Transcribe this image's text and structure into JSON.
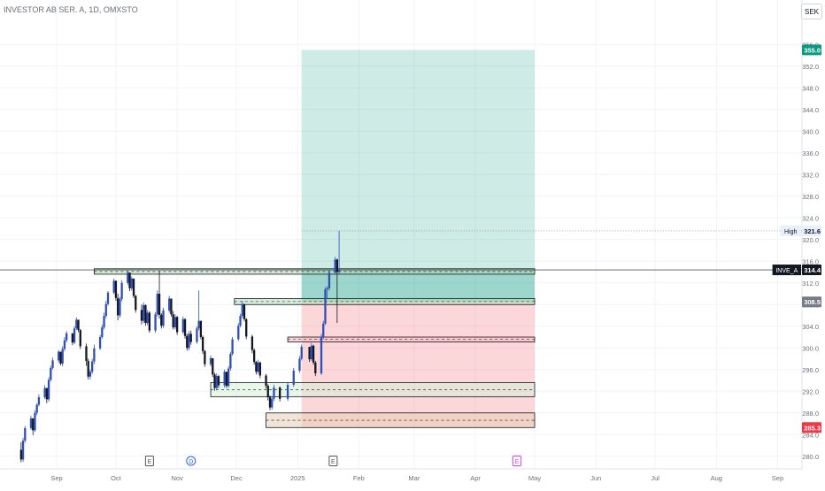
{
  "header": {
    "title": "INVESTOR AB SER. A, 1D, OMXSTO",
    "currency": "SEK"
  },
  "chart_data": {
    "type": "candlestick",
    "ylim": [
      278.0,
      358.0
    ],
    "y_ticks": [
      "280.0",
      "284.0",
      "288.0",
      "292.0",
      "296.0",
      "300.0",
      "304.0",
      "308.0",
      "312.0",
      "316.0",
      "320.0",
      "324.0",
      "328.0",
      "332.0",
      "336.0",
      "340.0",
      "344.0",
      "348.0",
      "352.0",
      "356.0"
    ],
    "x_labels": [
      {
        "label": "Sep",
        "date": "2024-09-01"
      },
      {
        "label": "Oct",
        "date": "2024-10-01"
      },
      {
        "label": "Nov",
        "date": "2024-11-01"
      },
      {
        "label": "Dec",
        "date": "2024-12-01"
      },
      {
        "label": "2025",
        "date": "2025-01-01"
      },
      {
        "label": "Feb",
        "date": "2025-02-01"
      },
      {
        "label": "Mar",
        "date": "2025-03-01"
      },
      {
        "label": "Apr",
        "date": "2025-04-01"
      },
      {
        "label": "May",
        "date": "2025-05-01"
      },
      {
        "label": "Jun",
        "date": "2025-06-01"
      },
      {
        "label": "Jul",
        "date": "2025-07-01"
      },
      {
        "label": "Aug",
        "date": "2025-08-01"
      },
      {
        "label": "Sep",
        "date": "2025-09-01"
      }
    ],
    "price_labels": [
      {
        "text": "355.0",
        "value": 355.0,
        "color": "#089981",
        "prefix": ""
      },
      {
        "text": "321.6",
        "value": 321.6,
        "color": "#e8f0fb",
        "text_color": "#131722",
        "prefix": "High"
      },
      {
        "text": "314.4",
        "value": 314.4,
        "color": "#131722",
        "prefix": "INVE_A"
      },
      {
        "text": "308.5",
        "value": 308.5,
        "color": "#787b86",
        "prefix": ""
      },
      {
        "text": "285.3",
        "value": 285.3,
        "color": "#f23645",
        "prefix": ""
      }
    ],
    "position": {
      "start_date": "2025-01-03",
      "end_date": "2025-05-01",
      "entry": 308.5,
      "target": 355.0,
      "stop": 285.3,
      "last": 314.4
    },
    "zones": [
      {
        "start_date": "2024-09-20",
        "end_date": "2025-05-01",
        "top": 314.6,
        "bottom": 313.6,
        "color": "#b2dfb5"
      },
      {
        "start_date": "2024-11-30",
        "end_date": "2025-05-01",
        "top": 309.1,
        "bottom": 308.0,
        "color": "#b2dfb5"
      },
      {
        "start_date": "2024-12-27",
        "end_date": "2025-05-01",
        "top": 302.0,
        "bottom": 301.1,
        "color": "#f8b8bd"
      },
      {
        "start_date": "2024-11-18",
        "end_date": "2025-05-01",
        "top": 293.6,
        "bottom": 291.0,
        "color": "#d7f0d7"
      },
      {
        "start_date": "2024-12-16",
        "end_date": "2025-05-01",
        "top": 288.0,
        "bottom": 285.3,
        "color": "#e8cdb4"
      }
    ],
    "events": [
      {
        "type": "E",
        "date": "2024-10-18",
        "color": "#555555"
      },
      {
        "type": "D",
        "date": "2024-11-08",
        "color": "#2962ff"
      },
      {
        "type": "E",
        "date": "2025-01-19",
        "color": "#555555"
      },
      {
        "type": "E",
        "date": "2025-04-22",
        "color": "#e040fb"
      }
    ],
    "candles": [
      [
        "2024-08-14",
        281.2,
        282.6,
        278.9,
        279.4
      ],
      [
        "2024-08-15",
        279.4,
        283.4,
        279.0,
        282.9
      ],
      [
        "2024-08-16",
        282.9,
        285.6,
        282.5,
        285.2
      ],
      [
        "2024-08-19",
        285.2,
        287.5,
        284.9,
        287.0
      ],
      [
        "2024-08-20",
        287.0,
        286.8,
        283.9,
        284.8
      ],
      [
        "2024-08-21",
        284.8,
        288.5,
        284.5,
        288.0
      ],
      [
        "2024-08-22",
        288.0,
        289.8,
        287.6,
        289.5
      ],
      [
        "2024-08-23",
        289.5,
        291.4,
        289.2,
        290.9
      ],
      [
        "2024-08-26",
        290.9,
        293.1,
        290.6,
        292.6
      ],
      [
        "2024-08-27",
        292.6,
        292.4,
        289.8,
        290.5
      ],
      [
        "2024-08-28",
        290.5,
        294.6,
        290.1,
        294.1
      ],
      [
        "2024-08-29",
        294.1,
        296.7,
        293.8,
        296.3
      ],
      [
        "2024-08-30",
        296.3,
        298.2,
        296.0,
        297.7
      ],
      [
        "2024-09-02",
        297.7,
        299.6,
        297.3,
        299.3
      ],
      [
        "2024-09-03",
        299.3,
        299.2,
        296.8,
        297.1
      ],
      [
        "2024-09-04",
        297.1,
        300.3,
        296.6,
        299.8
      ],
      [
        "2024-09-05",
        299.8,
        302.0,
        299.4,
        301.4
      ],
      [
        "2024-09-06",
        301.4,
        303.1,
        301.0,
        302.7
      ],
      [
        "2024-09-09",
        302.7,
        302.5,
        300.5,
        301.0
      ],
      [
        "2024-09-10",
        301.0,
        304.0,
        300.7,
        303.6
      ],
      [
        "2024-09-11",
        303.6,
        305.6,
        303.3,
        305.2
      ],
      [
        "2024-09-12",
        305.2,
        305.0,
        302.9,
        303.3
      ],
      [
        "2024-09-13",
        303.3,
        303.5,
        299.8,
        300.3
      ],
      [
        "2024-09-16",
        300.3,
        300.8,
        296.7,
        297.6
      ],
      [
        "2024-09-17",
        297.6,
        298.0,
        294.2,
        294.7
      ],
      [
        "2024-09-18",
        294.7,
        296.0,
        294.2,
        295.6
      ],
      [
        "2024-09-19",
        295.6,
        298.0,
        295.2,
        297.5
      ],
      [
        "2024-09-20",
        297.5,
        300.6,
        297.0,
        299.9
      ],
      [
        "2024-09-23",
        299.9,
        302.4,
        299.6,
        302.0
      ],
      [
        "2024-09-24",
        302.0,
        304.3,
        301.7,
        303.8
      ],
      [
        "2024-09-25",
        303.8,
        306.5,
        303.4,
        305.9
      ],
      [
        "2024-09-26",
        305.9,
        308.7,
        305.5,
        308.1
      ],
      [
        "2024-09-27",
        308.1,
        310.5,
        307.8,
        310.2
      ],
      [
        "2024-09-30",
        310.2,
        312.8,
        309.9,
        312.4
      ],
      [
        "2024-10-01",
        312.4,
        312.1,
        308.7,
        309.2
      ],
      [
        "2024-10-02",
        309.2,
        310.0,
        305.1,
        306.0
      ],
      [
        "2024-10-03",
        306.0,
        309.4,
        305.6,
        309.0
      ],
      [
        "2024-10-04",
        309.0,
        312.5,
        308.6,
        312.0
      ],
      [
        "2024-10-07",
        312.0,
        314.4,
        311.6,
        313.9
      ],
      [
        "2024-10-08",
        313.9,
        313.6,
        310.5,
        311.0
      ],
      [
        "2024-10-09",
        311.0,
        313.2,
        310.6,
        312.8
      ],
      [
        "2024-10-10",
        312.8,
        312.6,
        309.2,
        309.6
      ],
      [
        "2024-10-11",
        309.6,
        309.8,
        306.5,
        307.0
      ],
      [
        "2024-10-14",
        307.0,
        308.0,
        304.3,
        305.0
      ],
      [
        "2024-10-15",
        305.0,
        308.4,
        304.6,
        307.9
      ],
      [
        "2024-10-16",
        307.9,
        308.0,
        304.1,
        304.6
      ],
      [
        "2024-10-17",
        304.6,
        307.0,
        304.2,
        306.5
      ],
      [
        "2024-10-18",
        306.5,
        306.8,
        302.8,
        303.2
      ],
      [
        "2024-10-21",
        303.2,
        306.6,
        302.8,
        306.2
      ],
      [
        "2024-10-22",
        306.2,
        310.6,
        305.8,
        310.0
      ],
      [
        "2024-10-23",
        310.0,
        314.2,
        305.4,
        306.1
      ],
      [
        "2024-10-24",
        306.1,
        306.4,
        303.6,
        304.1
      ],
      [
        "2024-10-25",
        304.1,
        307.4,
        303.7,
        306.9
      ],
      [
        "2024-10-28",
        306.9,
        309.6,
        306.5,
        309.1
      ],
      [
        "2024-10-29",
        309.1,
        308.9,
        305.8,
        306.2
      ],
      [
        "2024-10-30",
        306.2,
        306.8,
        303.4,
        303.8
      ],
      [
        "2024-10-31",
        303.8,
        306.2,
        303.4,
        305.7
      ],
      [
        "2024-11-01",
        305.7,
        305.9,
        302.4,
        302.9
      ],
      [
        "2024-11-04",
        302.9,
        305.8,
        302.6,
        305.3
      ],
      [
        "2024-11-05",
        305.3,
        305.5,
        301.7,
        302.2
      ],
      [
        "2024-11-06",
        302.2,
        302.6,
        299.5,
        300.0
      ],
      [
        "2024-11-07",
        300.0,
        303.1,
        299.6,
        302.6
      ],
      [
        "2024-11-08",
        302.6,
        303.2,
        300.6,
        301.1
      ],
      [
        "2024-11-11",
        301.1,
        304.0,
        300.8,
        303.6
      ],
      [
        "2024-11-12",
        303.6,
        310.6,
        303.2,
        305.0
      ],
      [
        "2024-11-13",
        305.0,
        304.8,
        301.6,
        302.0
      ],
      [
        "2024-11-14",
        302.0,
        302.3,
        298.9,
        299.4
      ],
      [
        "2024-11-15",
        299.4,
        299.6,
        296.5,
        297.0
      ],
      [
        "2024-11-18",
        297.0,
        298.6,
        296.6,
        298.1
      ],
      [
        "2024-11-19",
        298.1,
        298.0,
        294.6,
        295.1
      ],
      [
        "2024-11-20",
        295.1,
        295.4,
        292.1,
        292.6
      ],
      [
        "2024-11-21",
        292.6,
        295.3,
        292.2,
        294.8
      ],
      [
        "2024-11-22",
        294.8,
        295.0,
        292.6,
        293.1
      ],
      [
        "2024-11-25",
        293.1,
        296.0,
        292.7,
        295.6
      ],
      [
        "2024-11-26",
        295.6,
        295.5,
        292.6,
        293.0
      ],
      [
        "2024-11-27",
        293.0,
        296.6,
        292.7,
        296.2
      ],
      [
        "2024-11-28",
        296.2,
        299.3,
        295.8,
        298.9
      ],
      [
        "2024-11-29",
        298.9,
        302.0,
        298.6,
        301.6
      ],
      [
        "2024-12-02",
        301.6,
        304.6,
        301.3,
        304.1
      ],
      [
        "2024-12-03",
        304.1,
        306.3,
        303.8,
        305.9
      ],
      [
        "2024-12-04",
        305.9,
        308.7,
        305.5,
        308.1
      ],
      [
        "2024-12-05",
        308.1,
        307.8,
        304.9,
        305.3
      ],
      [
        "2024-12-06",
        305.3,
        305.5,
        301.6,
        302.1
      ],
      [
        "2024-12-09",
        302.1,
        302.4,
        299.0,
        299.6
      ],
      [
        "2024-12-10",
        299.6,
        299.9,
        296.9,
        297.4
      ],
      [
        "2024-12-11",
        297.4,
        297.6,
        295.1,
        295.6
      ],
      [
        "2024-12-12",
        295.6,
        297.8,
        295.2,
        297.3
      ],
      [
        "2024-12-13",
        297.3,
        297.5,
        294.4,
        294.9
      ],
      [
        "2024-12-16",
        294.9,
        295.2,
        292.5,
        293.0
      ],
      [
        "2024-12-17",
        293.0,
        293.3,
        290.3,
        290.9
      ],
      [
        "2024-12-18",
        290.9,
        291.2,
        288.5,
        289.0
      ],
      [
        "2024-12-19",
        289.0,
        291.1,
        288.6,
        290.6
      ],
      [
        "2024-12-20",
        290.6,
        293.2,
        290.2,
        292.7
      ],
      [
        "2024-12-23",
        292.7,
        292.9,
        290.1,
        290.6
      ],
      [
        "2024-12-27",
        290.6,
        293.7,
        290.2,
        293.2
      ],
      [
        "2024-12-30",
        293.2,
        296.3,
        292.8,
        295.8
      ],
      [
        "2025-01-02",
        295.8,
        298.5,
        295.4,
        298.0
      ],
      [
        "2025-01-03",
        298.0,
        300.6,
        297.7,
        300.2
      ],
      [
        "2025-01-07",
        300.2,
        300.0,
        297.4,
        297.9
      ],
      [
        "2025-01-08",
        297.9,
        300.9,
        297.6,
        300.4
      ],
      [
        "2025-01-09",
        300.4,
        300.6,
        296.9,
        297.3
      ],
      [
        "2025-01-10",
        297.3,
        297.6,
        294.8,
        295.3
      ],
      [
        "2025-01-13",
        295.3,
        302.6,
        295.0,
        302.0
      ],
      [
        "2025-01-14",
        302.0,
        305.0,
        301.6,
        304.5
      ],
      [
        "2025-01-15",
        304.5,
        311.2,
        304.2,
        310.8
      ],
      [
        "2025-01-16",
        310.8,
        311.4,
        309.2,
        311.0
      ],
      [
        "2025-01-17",
        311.0,
        314.3,
        310.6,
        313.9
      ],
      [
        "2025-01-20",
        313.9,
        316.8,
        313.6,
        316.3
      ],
      [
        "2025-01-21",
        316.3,
        316.5,
        304.6,
        314.0
      ],
      [
        "2025-01-22",
        314.0,
        321.6,
        313.6,
        314.4
      ]
    ]
  }
}
